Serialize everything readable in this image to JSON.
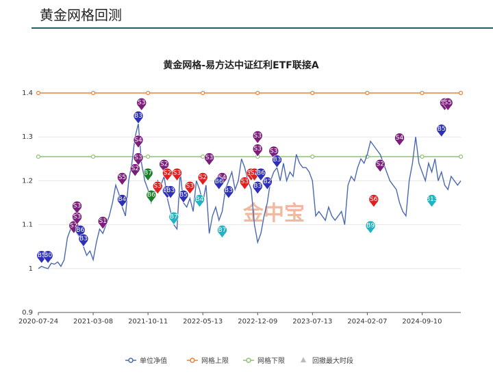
{
  "header": {
    "title": "黄金网格回测"
  },
  "chart_data": {
    "type": "line",
    "title": "黄金网格-易方达中证红利ETF联接A",
    "watermark": "金中宝",
    "ylim": [
      0.9,
      1.4
    ],
    "y_ticks": [
      "0.9",
      "1",
      "1.1",
      "1.2",
      "1.3",
      "1.4"
    ],
    "x_ticks": [
      "2020-07-24",
      "2021-03-08",
      "2021-10-11",
      "2022-05-13",
      "2022-12-09",
      "2023-07-13",
      "2024-02-07",
      "2024-09-10"
    ],
    "upper_limit": 1.4,
    "lower_limit": 1.255,
    "series": [
      {
        "name": "单位净值",
        "color": "#4a67b3",
        "values": [
          1.0,
          1.005,
          1.002,
          1.0,
          1.012,
          1.01,
          1.015,
          1.005,
          1.02,
          1.07,
          1.09,
          1.11,
          1.08,
          1.07,
          1.05,
          1.03,
          1.04,
          1.02,
          1.06,
          1.09,
          1.08,
          1.1,
          1.12,
          1.15,
          1.19,
          1.17,
          1.14,
          1.12,
          1.2,
          1.24,
          1.3,
          1.33,
          1.24,
          1.2,
          1.18,
          1.15,
          1.17,
          1.2,
          1.19,
          1.21,
          1.16,
          1.13,
          1.1,
          1.09,
          1.22,
          1.15,
          1.14,
          1.16,
          1.13,
          1.2,
          1.18,
          1.15,
          1.19,
          1.08,
          1.12,
          1.14,
          1.11,
          1.13,
          1.18,
          1.2,
          1.22,
          1.18,
          1.2,
          1.25,
          1.23,
          1.2,
          1.18,
          1.1,
          1.06,
          1.08,
          1.12,
          1.15,
          1.2,
          1.22,
          1.23,
          1.2,
          1.24,
          1.2,
          1.22,
          1.21,
          1.26,
          1.24,
          1.23,
          1.23,
          1.22,
          1.2,
          1.12,
          1.13,
          1.12,
          1.11,
          1.14,
          1.12,
          1.11,
          1.12,
          1.13,
          1.1,
          1.19,
          1.21,
          1.2,
          1.23,
          1.25,
          1.24,
          1.26,
          1.29,
          1.28,
          1.27,
          1.26,
          1.24,
          1.22,
          1.2,
          1.19,
          1.18,
          1.15,
          1.13,
          1.12,
          1.2,
          1.24,
          1.3,
          1.24,
          1.22,
          1.2,
          1.24,
          1.22,
          1.25,
          1.2,
          1.22,
          1.19,
          1.18,
          1.21,
          1.2,
          1.19,
          1.2
        ]
      },
      {
        "name": "网格上限",
        "color": "#e3823f"
      },
      {
        "name": "网格下限",
        "color": "#8dc36d"
      },
      {
        "name": "回撤最大时段",
        "color": "#bbbbbb"
      }
    ],
    "buy_markers": [
      {
        "label": "B5",
        "i": 1,
        "v": 1.012,
        "color": "#2d2fb5"
      },
      {
        "label": "B0",
        "i": 3,
        "v": 1.012,
        "color": "#2d2fb5"
      },
      {
        "label": "B6",
        "i": 13,
        "v": 1.07,
        "color": "#2d2fb5"
      },
      {
        "label": "B3",
        "i": 14,
        "v": 1.05,
        "color": "#2d2fb5"
      },
      {
        "label": "B4",
        "i": 26,
        "v": 1.14,
        "color": "#2d2fb5"
      },
      {
        "label": "B3",
        "i": 31,
        "v": 1.33,
        "color": "#2d2fb5"
      },
      {
        "label": "B7",
        "i": 34,
        "v": 1.2,
        "color": "#1a7f2a"
      },
      {
        "label": "B6",
        "i": 35,
        "v": 1.15,
        "color": "#1a7f2a"
      },
      {
        "label": "B5",
        "i": 40,
        "v": 1.16,
        "color": "#2d2fb5"
      },
      {
        "label": "B3",
        "i": 41,
        "v": 1.16,
        "color": "#2d2fb5"
      },
      {
        "label": "B7",
        "i": 42,
        "v": 1.1,
        "color": "#21b3c2"
      },
      {
        "label": "B5",
        "i": 45,
        "v": 1.15,
        "color": "#2d2fb5"
      },
      {
        "label": "B4",
        "i": 50,
        "v": 1.14,
        "color": "#21b3c2"
      },
      {
        "label": "B6",
        "i": 56,
        "v": 1.18,
        "color": "#2d2fb5"
      },
      {
        "label": "B7",
        "i": 57,
        "v": 1.07,
        "color": "#21b3c2"
      },
      {
        "label": "B3",
        "i": 59,
        "v": 1.16,
        "color": "#2d2fb5"
      },
      {
        "label": "B6",
        "i": 69,
        "v": 1.2,
        "color": "#2d2fb5"
      },
      {
        "label": "B2",
        "i": 71,
        "v": 1.18,
        "color": "#2d2fb5"
      },
      {
        "label": "B3",
        "i": 74,
        "v": 1.23,
        "color": "#2d2fb5"
      },
      {
        "label": "B3",
        "i": 68,
        "v": 1.17,
        "color": "#2d2fb5"
      },
      {
        "label": "B9",
        "i": 103,
        "v": 1.08,
        "color": "#21b3c2"
      },
      {
        "label": "B13",
        "i": 122,
        "v": 1.14,
        "color": "#21b3c2"
      },
      {
        "label": "B5",
        "i": 125,
        "v": 1.3,
        "color": "#2d2fb5"
      }
    ],
    "sell_markers": [
      {
        "label": "S7",
        "i": 11,
        "v": 1.08,
        "color": "#7b1e7b"
      },
      {
        "label": "S3",
        "i": 12,
        "v": 1.1,
        "color": "#7b1e7b"
      },
      {
        "label": "S3",
        "i": 12,
        "v": 1.125,
        "color": "#7b1e7b"
      },
      {
        "label": "S1",
        "i": 20,
        "v": 1.09,
        "color": "#7b1e7b"
      },
      {
        "label": "S5",
        "i": 26,
        "v": 1.19,
        "color": "#7b1e7b"
      },
      {
        "label": "S2",
        "i": 30,
        "v": 1.21,
        "color": "#7b1e7b"
      },
      {
        "label": "S3",
        "i": 31,
        "v": 1.235,
        "color": "#7b1e7b"
      },
      {
        "label": "S4",
        "i": 31,
        "v": 1.275,
        "color": "#7b1e7b"
      },
      {
        "label": "S3",
        "i": 32,
        "v": 1.36,
        "color": "#7b1e7b"
      },
      {
        "label": "S3",
        "i": 37,
        "v": 1.17,
        "color": "#e02020"
      },
      {
        "label": "S2",
        "i": 39,
        "v": 1.22,
        "color": "#7b1e7b"
      },
      {
        "label": "S2",
        "i": 40,
        "v": 1.2,
        "color": "#e02020"
      },
      {
        "label": "S3",
        "i": 43,
        "v": 1.2,
        "color": "#e02020"
      },
      {
        "label": "S3",
        "i": 47,
        "v": 1.17,
        "color": "#e02020"
      },
      {
        "label": "S2",
        "i": 51,
        "v": 1.19,
        "color": "#e02020"
      },
      {
        "label": "S3",
        "i": 53,
        "v": 1.235,
        "color": "#7b1e7b"
      },
      {
        "label": "S4",
        "i": 57,
        "v": 1.19,
        "color": "#7b1e7b"
      },
      {
        "label": "S3",
        "i": 64,
        "v": 1.18,
        "color": "#e02020"
      },
      {
        "label": "S1",
        "i": 66,
        "v": 1.2,
        "color": "#e02020"
      },
      {
        "label": "S2",
        "i": 67,
        "v": 1.2,
        "color": "#e02020"
      },
      {
        "label": "S3",
        "i": 68,
        "v": 1.255,
        "color": "#7b1e7b"
      },
      {
        "label": "S3",
        "i": 68,
        "v": 1.285,
        "color": "#7b1e7b"
      },
      {
        "label": "S3",
        "i": 73,
        "v": 1.25,
        "color": "#7b1e7b"
      },
      {
        "label": "S6",
        "i": 104,
        "v": 1.14,
        "color": "#e02020"
      },
      {
        "label": "S2",
        "i": 106,
        "v": 1.22,
        "color": "#7b1e7b"
      },
      {
        "label": "S4",
        "i": 112,
        "v": 1.28,
        "color": "#7b1e7b"
      },
      {
        "label": "S5",
        "i": 126,
        "v": 1.36,
        "color": "#7b1e7b"
      },
      {
        "label": "S5",
        "i": 127,
        "v": 1.36,
        "color": "#7b1e7b"
      }
    ],
    "legend_position": "bottom"
  }
}
